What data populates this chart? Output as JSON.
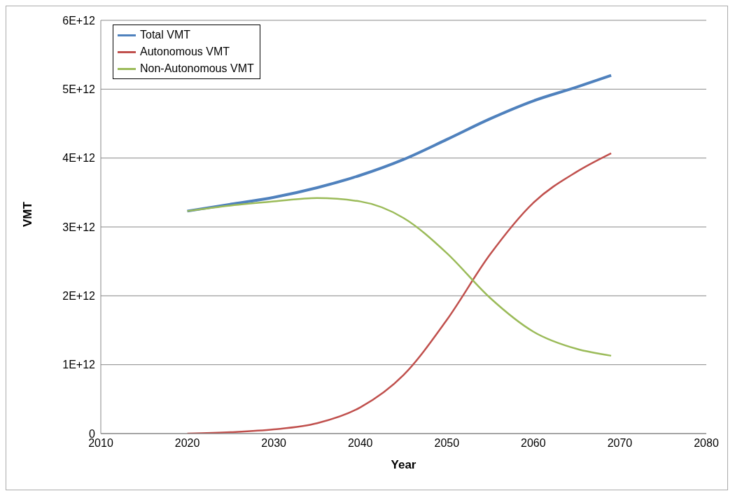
{
  "chart_data": {
    "type": "line",
    "xlabel": "Year",
    "ylabel": "VMT",
    "x": [
      2020,
      2025,
      2030,
      2035,
      2040,
      2045,
      2050,
      2055,
      2060,
      2065,
      2069
    ],
    "series": [
      {
        "name": "Total VMT",
        "color": "#4f81bd",
        "values": [
          3230000000000,
          3330000000000,
          3430000000000,
          3570000000000,
          3750000000000,
          3980000000000,
          4270000000000,
          4570000000000,
          4830000000000,
          5030000000000,
          5200000000000
        ]
      },
      {
        "name": "Autonomous VMT",
        "color": "#c0504d",
        "values": [
          0,
          20000000000,
          60000000000,
          150000000000,
          380000000000,
          850000000000,
          1650000000000,
          2600000000000,
          3350000000000,
          3800000000000,
          4070000000000
        ]
      },
      {
        "name": "Non-Autonomous VMT",
        "color": "#9bbb59",
        "values": [
          3230000000000,
          3310000000000,
          3370000000000,
          3420000000000,
          3370000000000,
          3130000000000,
          2620000000000,
          1970000000000,
          1480000000000,
          1230000000000,
          1130000000000
        ]
      }
    ],
    "xlim": [
      2010,
      2080
    ],
    "xticks": [
      2010,
      2020,
      2030,
      2040,
      2050,
      2060,
      2070,
      2080
    ],
    "ylim": [
      0,
      6000000000000
    ],
    "yticks": [
      0,
      {
        "value": 1000000000000,
        "label": "1E+12"
      },
      {
        "value": 2000000000000,
        "label": "2E+12"
      },
      {
        "value": 3000000000000,
        "label": "3E+12"
      },
      {
        "value": 4000000000000,
        "label": "4E+12"
      },
      {
        "value": 5000000000000,
        "label": "5E+12"
      },
      {
        "value": 6000000000000,
        "label": "6E+12"
      }
    ],
    "grid": "y",
    "legend": "top left",
    "marker": "none",
    "line_style": "solid"
  }
}
